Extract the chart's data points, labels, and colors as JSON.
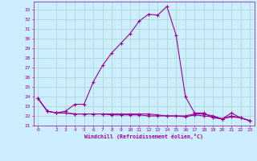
{
  "xlabel": "Windchill (Refroidissement éolien,°C)",
  "bg_color": "#cceeff",
  "grid_color": "#b0d8cc",
  "line_color": "#990099",
  "xlim": [
    -0.5,
    23.5
  ],
  "ylim": [
    21.0,
    33.8
  ],
  "yticks": [
    21,
    22,
    23,
    24,
    25,
    26,
    27,
    28,
    29,
    30,
    31,
    32,
    33
  ],
  "xticks": [
    0,
    2,
    3,
    4,
    5,
    6,
    7,
    8,
    9,
    10,
    11,
    12,
    13,
    14,
    15,
    16,
    17,
    18,
    19,
    20,
    21,
    22,
    23
  ],
  "series1_x": [
    0,
    1,
    2,
    3,
    4,
    5,
    6,
    7,
    8,
    9,
    10,
    11,
    12,
    13,
    14,
    15,
    16,
    17,
    18,
    19,
    20,
    21,
    22,
    23
  ],
  "series1_y": [
    23.8,
    22.5,
    22.3,
    22.5,
    23.2,
    23.2,
    25.5,
    27.2,
    28.5,
    29.5,
    30.5,
    31.8,
    32.5,
    32.4,
    33.3,
    30.3,
    24.0,
    22.3,
    22.3,
    21.8,
    21.7,
    22.3,
    21.8,
    21.5
  ],
  "series2_x": [
    0,
    1,
    2,
    3,
    4,
    5,
    6,
    7,
    8,
    9,
    10,
    11,
    12,
    13,
    14,
    15,
    16,
    17,
    18,
    19,
    20,
    21,
    22,
    23
  ],
  "series2_y": [
    23.8,
    22.5,
    22.3,
    22.3,
    22.2,
    22.2,
    22.2,
    22.2,
    22.2,
    22.2,
    22.2,
    22.2,
    22.2,
    22.1,
    22.0,
    22.0,
    22.0,
    22.2,
    22.2,
    22.0,
    21.7,
    22.0,
    21.8,
    21.5
  ],
  "series3_x": [
    0,
    1,
    2,
    3,
    4,
    5,
    6,
    7,
    8,
    9,
    10,
    11,
    12,
    13,
    14,
    15,
    16,
    17,
    18,
    19,
    20,
    21,
    22,
    23
  ],
  "series3_y": [
    23.8,
    22.5,
    22.3,
    22.3,
    22.2,
    22.2,
    22.2,
    22.2,
    22.1,
    22.1,
    22.1,
    22.1,
    22.0,
    22.0,
    22.0,
    22.0,
    21.9,
    22.1,
    22.0,
    21.9,
    21.7,
    21.9,
    21.8,
    21.5
  ]
}
